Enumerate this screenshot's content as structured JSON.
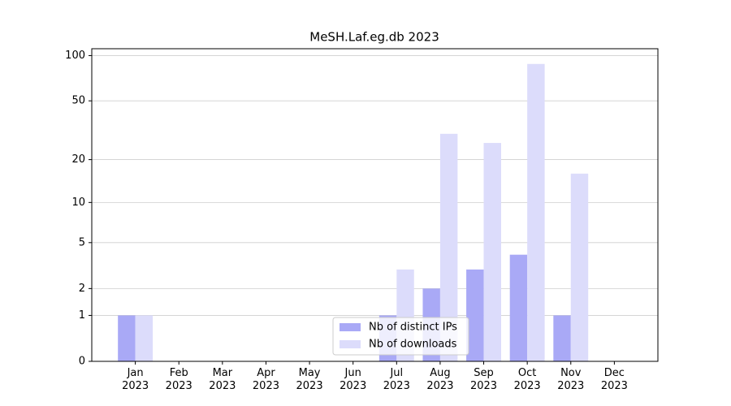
{
  "chart_data": {
    "type": "bar",
    "title": "MeSH.Laf.eg.db 2023",
    "categories": [
      "Jan\n2023",
      "Feb\n2023",
      "Mar\n2023",
      "Apr\n2023",
      "May\n2023",
      "Jun\n2023",
      "Jul\n2023",
      "Aug\n2023",
      "Sep\n2023",
      "Oct\n2023",
      "Nov\n2023",
      "Dec\n2023"
    ],
    "series": [
      {
        "name": "Nb of distinct IPs",
        "color": "#a9a9f6",
        "values": [
          1,
          0,
          0,
          0,
          0,
          0,
          1,
          2,
          3,
          4,
          1,
          0
        ]
      },
      {
        "name": "Nb of downloads",
        "color": "#dcdcfb",
        "values": [
          1,
          0,
          0,
          0,
          0,
          0,
          3,
          30,
          26,
          88,
          16,
          0
        ]
      }
    ],
    "ylim": [
      0,
      111
    ],
    "yticks": [
      0,
      1,
      2,
      5,
      10,
      20,
      50,
      100
    ],
    "yscale": "log1p",
    "grid": true,
    "legend": "lower center"
  }
}
